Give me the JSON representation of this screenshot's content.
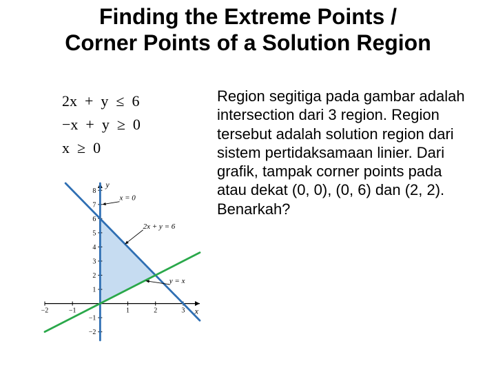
{
  "title_line1": "Finding the Extreme Points /",
  "title_line2": "Corner Points of a Solution Region",
  "equations": {
    "row1": "2x  +  y  ≤  6",
    "row2": "−x  +  y  ≥  0",
    "row3": "x  ≥  0"
  },
  "body": "Region segitiga pada gambar adalah intersection dari 3 region. Region tersebut adalah solution region dari sistem pertidaksamaan linier. Dari grafik, tampak corner points pada atau dekat (0, 0), (0, 6) dan (2, 2). Benarkah?",
  "graph": {
    "type": "line-system",
    "x_range": [
      -2,
      3.6
    ],
    "y_range": [
      -2.6,
      8.5
    ],
    "x_ticks": [
      -2,
      -1,
      1,
      2,
      3
    ],
    "y_ticks": [
      -2,
      -1,
      1,
      2,
      3,
      4,
      5,
      6,
      7,
      8
    ],
    "axis_labels": {
      "x": "x",
      "y": "y"
    },
    "axis_color": "#000000",
    "grid_color": "#ffffff",
    "background": "#ffffff",
    "lines": [
      {
        "name": "x=0",
        "label": "x = 0",
        "color": "#2f6fb3",
        "width": 2.8,
        "points": [
          [
            0,
            -2.6
          ],
          [
            0,
            8.5
          ]
        ]
      },
      {
        "name": "2x+y=6",
        "label": "2x + y = 6",
        "color": "#2f6fb3",
        "width": 2.8,
        "points": [
          [
            -1.25,
            8.5
          ],
          [
            3.6,
            -1.2
          ]
        ]
      },
      {
        "name": "y=x",
        "label": "y = x",
        "color": "#2aa84a",
        "width": 2.8,
        "points": [
          [
            -2,
            -2
          ],
          [
            3.6,
            3.6
          ]
        ]
      }
    ],
    "region_fill": "#bcd6ee",
    "region_opacity": 0.85,
    "region_vertices": [
      [
        0,
        0
      ],
      [
        0,
        6
      ],
      [
        2,
        2
      ]
    ],
    "label_fontsize": 11,
    "label_font": "Times New Roman",
    "tick_fontsize": 10,
    "corner_points": [
      [
        0,
        0
      ],
      [
        0,
        6
      ],
      [
        2,
        2
      ]
    ]
  }
}
